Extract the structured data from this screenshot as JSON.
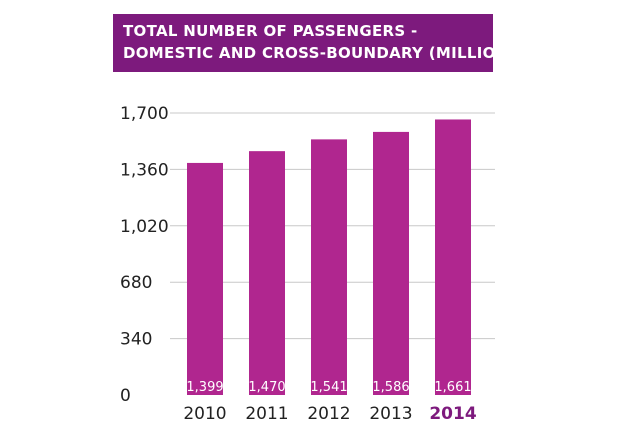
{
  "chart_data": {
    "type": "bar",
    "title_lines": [
      "TOTAL NUMBER OF PASSENGERS -",
      "DOMESTIC AND CROSS-BOUNDARY (MILLION)"
    ],
    "categories": [
      "2010",
      "2011",
      "2012",
      "2013",
      "2014"
    ],
    "values": [
      1399,
      1470,
      1541,
      1586,
      1661
    ],
    "data_labels": [
      "1,399",
      "1,470",
      "1,541",
      "1,586",
      "1,661"
    ],
    "highlight_category": "2014",
    "yticks": [
      0,
      340,
      680,
      1020,
      1360,
      1700
    ],
    "ytick_labels": [
      "0",
      "340",
      "680",
      "1,020",
      "1,360",
      "1,700"
    ],
    "ylim": [
      0,
      1700
    ],
    "grid": true,
    "xlabel": "",
    "ylabel": "",
    "colors": {
      "bar": "#b0268f",
      "title_background": "#7d1a7d",
      "highlight_text": "#7d1a7d",
      "grid": "#c8c8c8"
    }
  }
}
